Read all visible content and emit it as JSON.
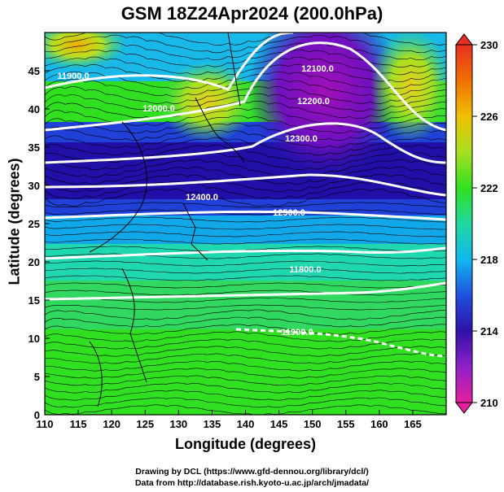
{
  "title": "GSM 18Z24Apr2024 (200.0hPa)",
  "x_axis": {
    "label": "Longitude (degrees)",
    "ticks": [
      "110",
      "115",
      "120",
      "125",
      "130",
      "135",
      "140",
      "145",
      "150",
      "155",
      "160",
      "165"
    ],
    "range": [
      110,
      170
    ]
  },
  "y_axis": {
    "label": "Latitude  (degrees)",
    "ticks": [
      "0",
      "5",
      "10",
      "15",
      "20",
      "25",
      "30",
      "35",
      "40",
      "45"
    ],
    "range": [
      0,
      50
    ]
  },
  "colorbar": {
    "ticks": [
      "210",
      "214",
      "218",
      "222",
      "226",
      "230"
    ],
    "range": [
      210,
      230
    ],
    "colors": [
      "#e6209e",
      "#9020c8",
      "#3010a8",
      "#2050e0",
      "#10b8ee",
      "#20d8a0",
      "#30e020",
      "#a8e020",
      "#f0c000",
      "#f07000",
      "#e83020"
    ]
  },
  "contour_labels": [
    "11900.0",
    "12000.0",
    "12100.0",
    "12200.0",
    "12300.0",
    "12400.0",
    "12500.0",
    "11800.0",
    "11900.0"
  ],
  "credits": {
    "line1": "Drawing by DCL (https://www.gfd-dennou.org/library/dcl/)",
    "line2": "Data from http://database.rish.kyoto-u.ac.jp/arch/jmadata/"
  }
}
